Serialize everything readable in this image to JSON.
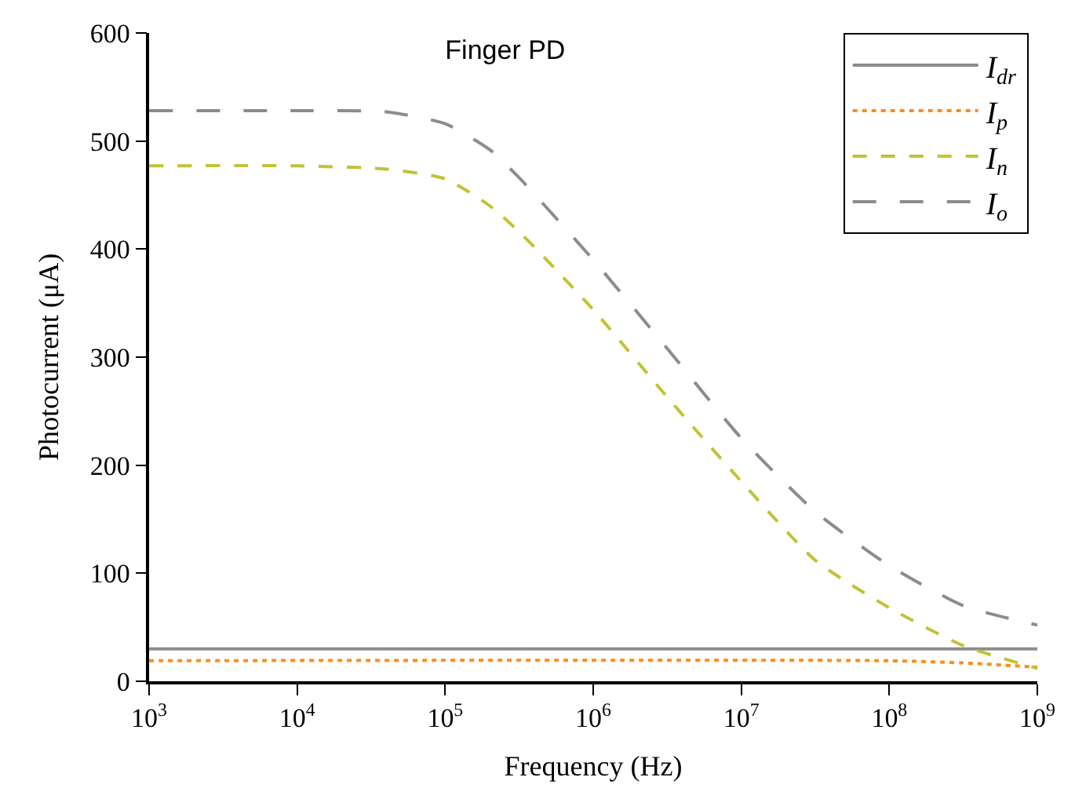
{
  "chart_data": {
    "type": "line",
    "title": "Finger PD",
    "xlabel": "Frequency (Hz)",
    "ylabel": "Photocurrent (μA)",
    "log": "x",
    "xlim": [
      1000,
      1000000000
    ],
    "ylim": [
      0,
      600
    ],
    "xticks": [
      {
        "value": 1000,
        "label": "10$^{3}$"
      },
      {
        "value": 10000,
        "label": "10$^{4}$"
      },
      {
        "value": 100000,
        "label": "10$^{5}$"
      },
      {
        "value": 1000000,
        "label": "10$^{6}$"
      },
      {
        "value": 10000000,
        "label": "10$^{7}$"
      },
      {
        "value": 100000000,
        "label": "10$^{8}$"
      },
      {
        "value": 1000000000,
        "label": "10$^{9}$"
      }
    ],
    "yticks": [
      0,
      100,
      200,
      300,
      400,
      500,
      600
    ],
    "legend": "top right",
    "marker": "none",
    "x": [
      1000,
      10000,
      40000,
      100000,
      200000,
      316000,
      1000000,
      3160000,
      10000000,
      31600000,
      100000000,
      316000000,
      1000000000
    ],
    "series": [
      {
        "name": "I$_{dr}$",
        "color": "#8c8c8c",
        "line_style": "solid",
        "x": [
          1000,
          1000000000
        ],
        "values": [
          30,
          30
        ]
      },
      {
        "name": "I$_{p}$",
        "color": "#ff8c1a",
        "line_style": "dotted",
        "x": [
          1000,
          100000000,
          316000000,
          1000000000
        ],
        "values": [
          19,
          19,
          17,
          13
        ]
      },
      {
        "name": "I$_{n}$",
        "color": "#c2c236",
        "line_style": "dashed",
        "values": [
          477,
          477,
          474,
          465,
          440,
          416,
          344,
          263,
          185,
          112,
          68,
          33,
          12
        ]
      },
      {
        "name": "I$_{o}$",
        "color": "#8c8c8c",
        "line_style": "longdash",
        "values": [
          528,
          528,
          527,
          516,
          492,
          466,
          390,
          308,
          225,
          157,
          107,
          70,
          52
        ]
      }
    ]
  }
}
